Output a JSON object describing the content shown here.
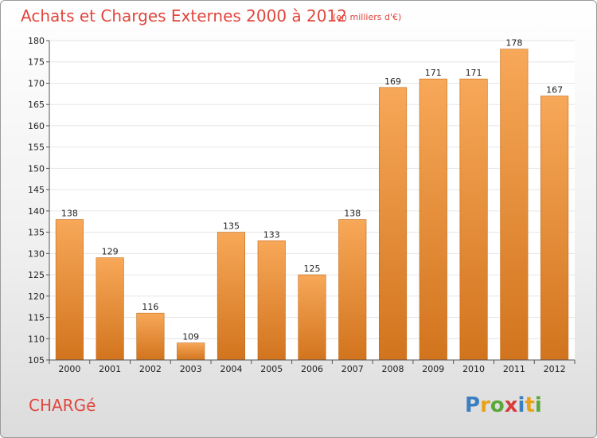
{
  "title": "Achats et Charges Externes 2000 à 2012",
  "unit": "(en milliers d'€)",
  "town": "CHARGé",
  "logo": {
    "text": "Proxiti",
    "letters": [
      {
        "ch": "P",
        "color": "#3a7fc1"
      },
      {
        "ch": "r",
        "color": "#e8a21a"
      },
      {
        "ch": "o",
        "color": "#5aa83a"
      },
      {
        "ch": "x",
        "color": "#d83b3b"
      },
      {
        "ch": "i",
        "color": "#3a7fc1"
      },
      {
        "ch": "t",
        "color": "#e8a21a"
      },
      {
        "ch": "i",
        "color": "#5aa83a"
      }
    ]
  },
  "colors": {
    "bar_top": "#f7a858",
    "bar_bottom": "#d2741e",
    "bar_edge": "#c26a1a",
    "grid": "#e6e6e6",
    "axis": "#555555",
    "title": "#e0463c"
  },
  "chart_data": {
    "type": "bar",
    "title": "Achats et Charges Externes 2000 à 2012",
    "subtitle": "(en milliers d'€)",
    "xlabel": "",
    "ylabel": "",
    "categories": [
      "2000",
      "2001",
      "2002",
      "2003",
      "2004",
      "2005",
      "2006",
      "2007",
      "2008",
      "2009",
      "2010",
      "2011",
      "2012"
    ],
    "values": [
      138,
      129,
      116,
      109,
      135,
      133,
      125,
      138,
      169,
      171,
      171,
      178,
      167
    ],
    "ylim": [
      105,
      180
    ],
    "yticks": [
      105,
      110,
      115,
      120,
      125,
      130,
      135,
      140,
      145,
      150,
      155,
      160,
      165,
      170,
      175,
      180
    ],
    "grid": true,
    "legend": "none",
    "data_labels": true
  }
}
